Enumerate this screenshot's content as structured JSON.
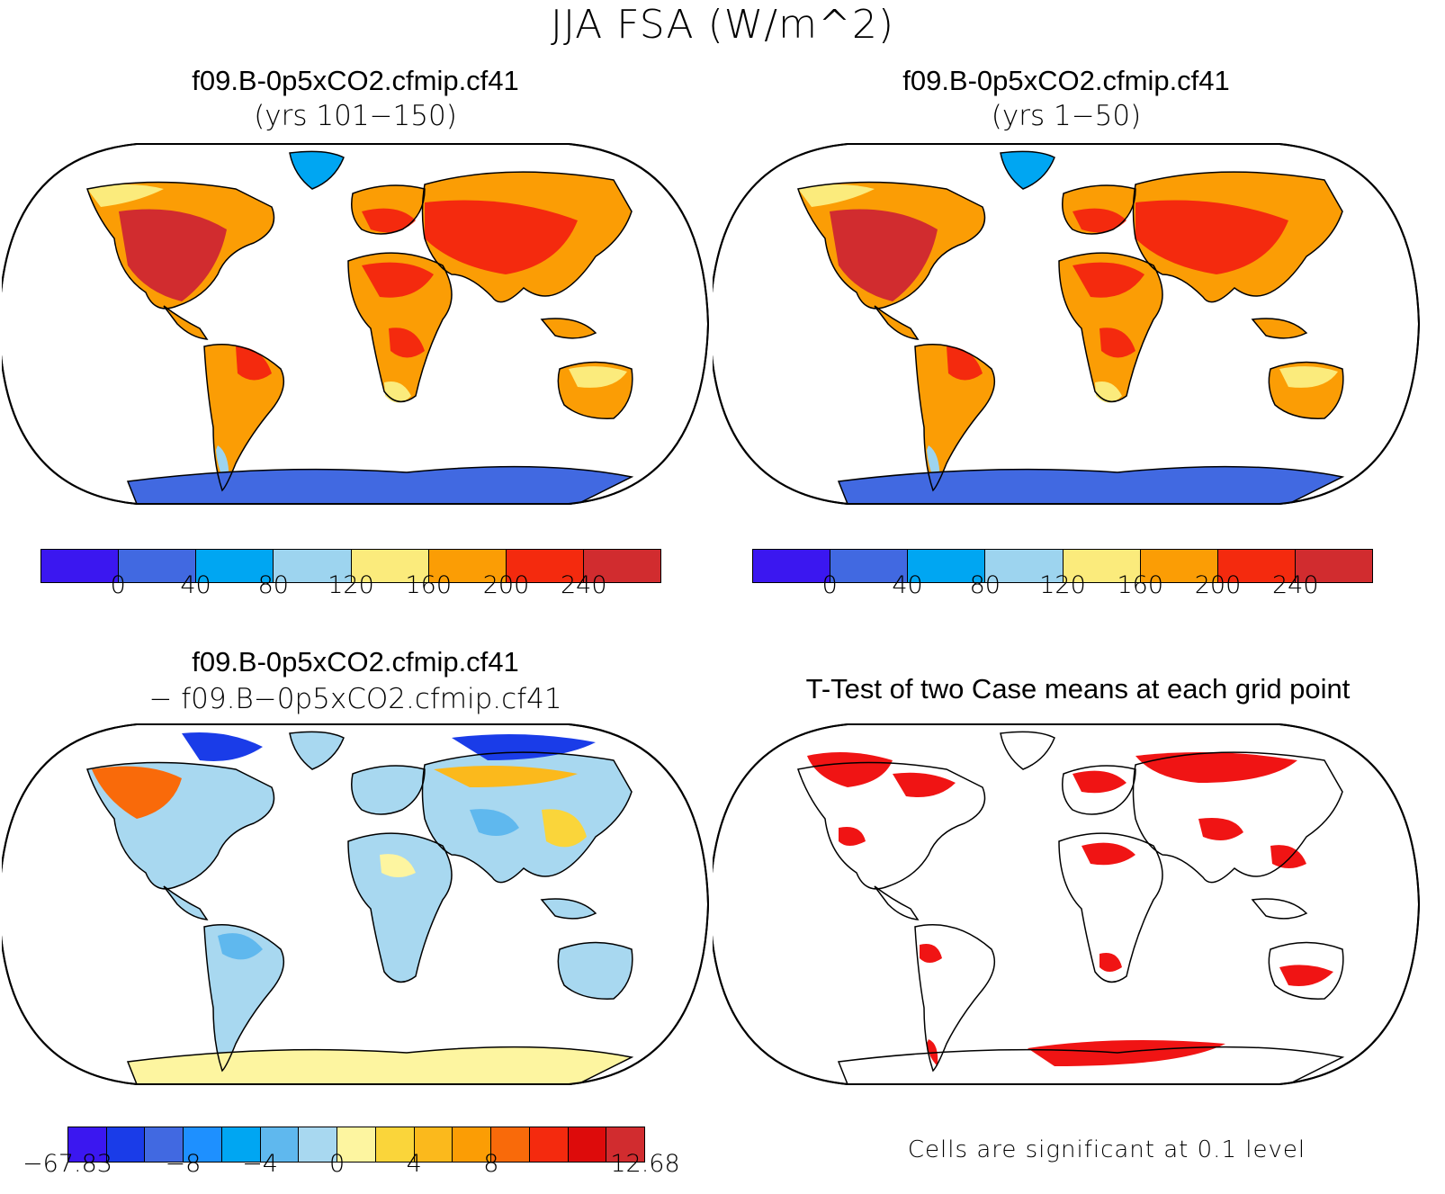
{
  "title": "JJA FSA (W/m^2)",
  "panels": {
    "top_left": {
      "title": "f09.B-0p5xCO2.cfmip.cf41",
      "subtitle": "(yrs 101−150)"
    },
    "top_right": {
      "title": "f09.B-0p5xCO2.cfmip.cf41",
      "subtitle": "(yrs 1−50)"
    },
    "bottom_left": {
      "title": "f09.B-0p5xCO2.cfmip.cf41",
      "subtitle": "− f09.B−0p5xCO2.cfmip.cf41"
    },
    "bottom_right": {
      "title": "T-Test of two Case means at each grid point",
      "footnote": "Cells are significant at 0.1 level"
    }
  },
  "colorbar_abs": {
    "colors": [
      "#3b17f0",
      "#4169e1",
      "#00a6f2",
      "#9dd4ef",
      "#fbeb7c",
      "#fb9d05",
      "#f42a0e",
      "#d12c2f"
    ],
    "ticks": [
      "0",
      "40",
      "80",
      "120",
      "160",
      "200",
      "240"
    ]
  },
  "colorbar_diff": {
    "colors": [
      "#3b17f0",
      "#1a3ce8",
      "#4169e1",
      "#1e90ff",
      "#00a6f2",
      "#5fb8ee",
      "#a8d8f0",
      "#fdf5a0",
      "#fad53a",
      "#fbb91c",
      "#fb9d05",
      "#f96a0a",
      "#f42a0e",
      "#dd0b0b",
      "#d12c2f"
    ],
    "ticks": [
      "−67.83",
      "−8",
      "−4",
      "0",
      "4",
      "8",
      "12.68"
    ]
  },
  "ttest_color": "#f01414"
}
